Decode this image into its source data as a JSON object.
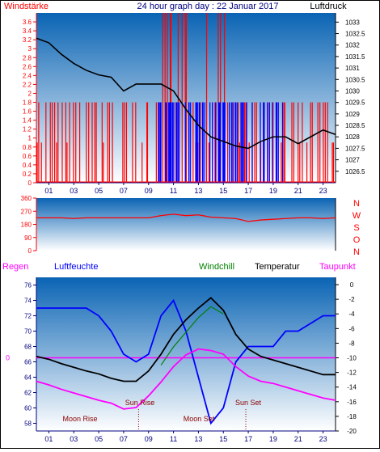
{
  "header": {
    "title": "24 hour graph day : 22 Januar 2017",
    "left_label": "Windstärke",
    "right_label": "Luftdruck"
  },
  "colors": {
    "bg_top": "#0a64b4",
    "bg_bottom": "#ffffff",
    "wind": "#ff0000",
    "gust": "#0000ff",
    "pressure": "#000000",
    "humidity": "#0000ff",
    "temperature": "#000000",
    "dewpoint": "#ff00ff",
    "windchill": "#008000",
    "left_axis": "#ff0000",
    "center_axis": "#000080",
    "moon": "#8b0000"
  },
  "wind_direction_labels": [
    "N",
    "W",
    "S",
    "O",
    "N"
  ],
  "bottom_header": {
    "regen": "Regen",
    "luftfeuchte": "Luftfeuchte",
    "windchill": "Windchill",
    "temperatur": "Temperatur",
    "taupunkt": "Taupunkt"
  },
  "astro_labels": {
    "sun_rise": "Sun Rise",
    "moon_rise": "Moon Rise",
    "moon_set": "Moon Set",
    "sun_set": "Sun Set"
  },
  "time_axis_hours": [
    "01",
    "03",
    "05",
    "07",
    "09",
    "11",
    "13",
    "15",
    "17",
    "19",
    "21",
    "23"
  ],
  "chart_data": [
    {
      "type": "line",
      "title": "24 hour graph day : 22 Januar 2017",
      "ylabel_left": "Windstärke",
      "ylabel_right": "Luftdruck",
      "ylim_left": [
        0,
        3.8
      ],
      "ylim_right": [
        1026.0,
        1033.4
      ],
      "yticks_left": [
        "0",
        "0.2",
        "0.4",
        "0.6",
        "0.8",
        "1",
        "1.2",
        "1.4",
        "1.6",
        "1.8",
        "2",
        "2.2",
        "2.4",
        "2.6",
        "2.8",
        "3",
        "3.2",
        "3.4",
        "3.6"
      ],
      "yticks_right": [
        "1026.5",
        "1027",
        "1027.5",
        "1028",
        "1028.5",
        "1029",
        "1029.5",
        "1030",
        "1030.5",
        "1031",
        "1031.5",
        "1032",
        "1032.5",
        "1033"
      ],
      "series": [
        {
          "name": "Luftdruck",
          "x": [
            0,
            1,
            2,
            3,
            4,
            5,
            6,
            7,
            8,
            9,
            10,
            11,
            12,
            13,
            14,
            15,
            16,
            17,
            18,
            19,
            20,
            21,
            22,
            23,
            24
          ],
          "values": [
            1032.3,
            1032.1,
            1031.6,
            1031.2,
            1030.9,
            1030.7,
            1030.6,
            1030.0,
            1030.3,
            1030.3,
            1030.3,
            1030.0,
            1029.2,
            1028.5,
            1028.0,
            1027.8,
            1027.6,
            1027.5,
            1027.8,
            1028.0,
            1028.0,
            1027.7,
            1028.0,
            1028.3,
            1028.1
          ]
        }
      ]
    },
    {
      "type": "scatter",
      "title": "",
      "ylabel": "",
      "ylim": [
        0,
        360
      ],
      "yticks": [
        "0",
        "90",
        "180",
        "270",
        "360"
      ],
      "series": [
        {
          "name": "",
          "x": [
            0,
            1,
            2,
            3,
            4,
            5,
            6,
            7,
            8,
            9,
            10,
            11,
            12,
            13,
            14,
            15,
            16,
            17,
            18,
            19,
            20,
            21,
            22,
            23,
            24
          ],
          "values": [
            225,
            225,
            225,
            220,
            225,
            225,
            225,
            225,
            225,
            225,
            240,
            250,
            240,
            245,
            230,
            225,
            220,
            200,
            210,
            215,
            220,
            225,
            225,
            220,
            225
          ]
        }
      ]
    },
    {
      "type": "line",
      "title": "",
      "ylabel_left": "Luftfeuchte",
      "ylabel_right": "Temperatur",
      "ylim_left": [
        57,
        77
      ],
      "ylim_right": [
        -20,
        1
      ],
      "yticks_left": [
        "58",
        "60",
        "62",
        "64",
        "66",
        "68",
        "70",
        "72",
        "74",
        "76"
      ],
      "yticks_right": [
        "-20",
        "-18",
        "-16",
        "-14",
        "-12",
        "-10",
        "-8",
        "-6",
        "-4",
        "-2",
        "0"
      ],
      "series": [
        {
          "name": "Luftfeuchte",
          "x": [
            0,
            1,
            2,
            3,
            4,
            5,
            6,
            7,
            8,
            9,
            10,
            11,
            12,
            13,
            14,
            15,
            16,
            17,
            18,
            19,
            20,
            21,
            22,
            23,
            24
          ],
          "values": [
            73,
            73,
            73,
            73,
            73,
            72,
            70,
            67,
            66,
            67,
            72,
            74,
            70,
            64,
            58,
            60,
            66,
            68,
            68,
            68,
            70,
            70,
            71,
            72,
            72
          ]
        },
        {
          "name": "Temperatur",
          "x": [
            0,
            1,
            2,
            3,
            4,
            5,
            6,
            7,
            8,
            9,
            10,
            11,
            12,
            13,
            14,
            15,
            16,
            17,
            18,
            19,
            20,
            21,
            22,
            23,
            24
          ],
          "values": [
            -9.8,
            -10.2,
            -10.8,
            -11.3,
            -11.8,
            -12.2,
            -12.8,
            -13.2,
            -13.2,
            -11.8,
            -9.5,
            -6.8,
            -4.8,
            -3.2,
            -1.8,
            -3.5,
            -6.8,
            -8.8,
            -9.8,
            -10.3,
            -10.8,
            -11.3,
            -11.8,
            -12.3,
            -12.3
          ]
        },
        {
          "name": "Taupunkt",
          "x": [
            0,
            1,
            2,
            3,
            4,
            5,
            6,
            7,
            8,
            9,
            10,
            11,
            12,
            13,
            14,
            15,
            16,
            17,
            18,
            19,
            20,
            21,
            22,
            23,
            24
          ],
          "values": [
            -13.2,
            -13.7,
            -14.3,
            -14.8,
            -15.3,
            -15.8,
            -16.2,
            -17.0,
            -16.8,
            -15.2,
            -13.3,
            -11.2,
            -9.6,
            -8.8,
            -9.0,
            -9.5,
            -11.2,
            -12.5,
            -13.2,
            -13.5,
            -14.0,
            -14.5,
            -15.0,
            -15.5,
            -15.8
          ]
        },
        {
          "name": "Windchill",
          "x": [
            10,
            11,
            12,
            13,
            14,
            15
          ],
          "values": [
            -11.0,
            -8.5,
            -6.5,
            -4.5,
            -3.0,
            -4.0
          ]
        },
        {
          "name": "Regen",
          "x": [
            0,
            24
          ],
          "values": [
            0,
            0
          ]
        }
      ]
    }
  ]
}
